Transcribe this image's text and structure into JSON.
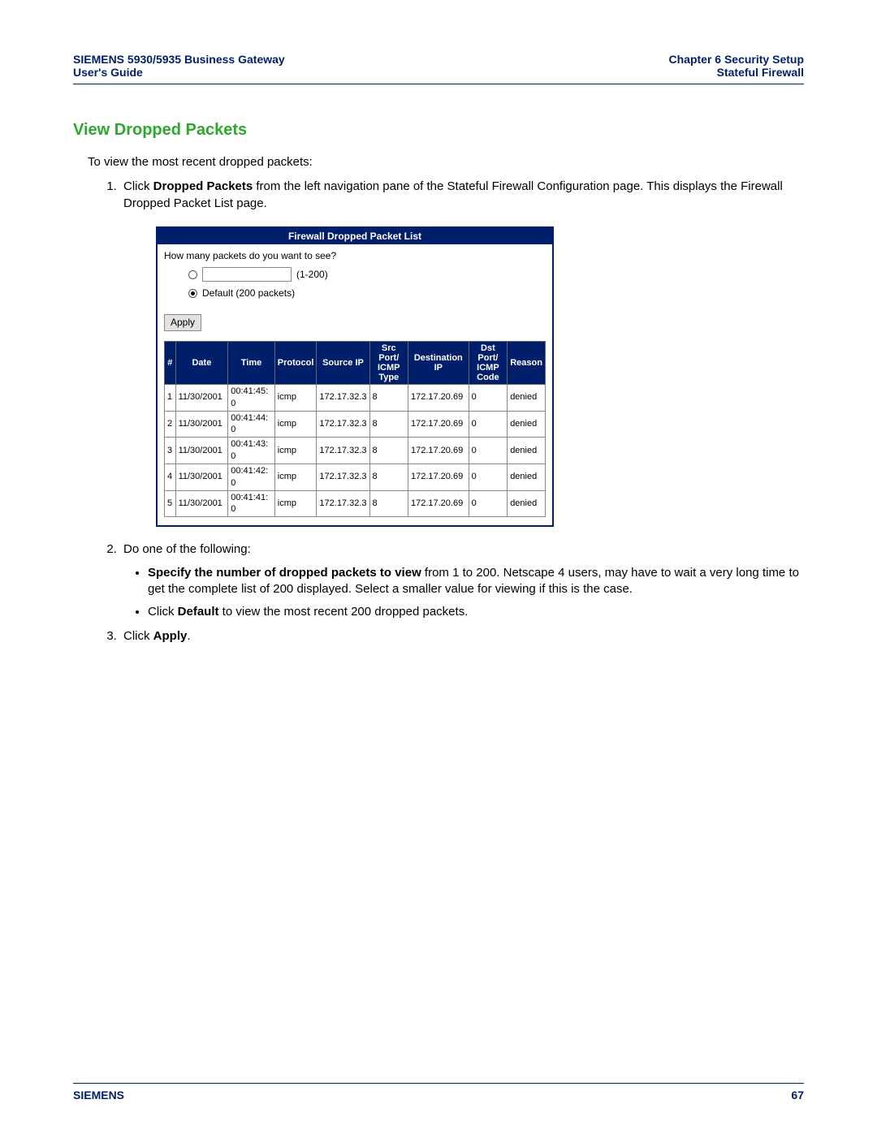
{
  "header": {
    "left_line1": "SIEMENS 5930/5935 Business Gateway",
    "left_line2": "User's Guide",
    "right_line1": "Chapter 6  Security Setup",
    "right_line2": "Stateful Firewall"
  },
  "section_title": "View Dropped Packets",
  "intro": "To view the most recent dropped packets:",
  "step1_a": "Click ",
  "step1_bold": "Dropped Packets",
  "step1_b": " from the left navigation pane of the Stateful Firewall Configuration page. This displays the Firewall Dropped Packet List page.",
  "ui": {
    "title": "Firewall Dropped Packet List",
    "question": "How many packets do you want to see?",
    "range_hint": "(1-200)",
    "default_label": "Default (200 packets)",
    "apply": "Apply",
    "columns": [
      "#",
      "Date",
      "Time",
      "Protocol",
      "Source IP",
      "Src Port/\nICMP Type",
      "Destination IP",
      "Dst Port/\nICMP Code",
      "Reason"
    ],
    "rows": [
      [
        "1",
        "11/30/2001",
        "00:41:45: 0",
        "icmp",
        "172.17.32.3",
        "8",
        "172.17.20.69",
        "0",
        "denied"
      ],
      [
        "2",
        "11/30/2001",
        "00:41:44: 0",
        "icmp",
        "172.17.32.3",
        "8",
        "172.17.20.69",
        "0",
        "denied"
      ],
      [
        "3",
        "11/30/2001",
        "00:41:43: 0",
        "icmp",
        "172.17.32.3",
        "8",
        "172.17.20.69",
        "0",
        "denied"
      ],
      [
        "4",
        "11/30/2001",
        "00:41:42: 0",
        "icmp",
        "172.17.32.3",
        "8",
        "172.17.20.69",
        "0",
        "denied"
      ],
      [
        "5",
        "11/30/2001",
        "00:41:41: 0",
        "icmp",
        "172.17.32.3",
        "8",
        "172.17.20.69",
        "0",
        "denied"
      ]
    ],
    "col_widths": [
      "14px",
      "68px",
      "62px",
      "46px",
      "62px",
      "60px",
      "78px",
      "60px",
      "44px"
    ],
    "header_bg": "#001f6b",
    "header_fg": "#ffffff"
  },
  "step2_intro": "Do one of the following:",
  "step2_bullet1_bold": "Specify the number of dropped packets to view",
  "step2_bullet1_rest": " from 1 to 200. Netscape 4 users, may have to wait a very long time to get the complete list of 200 displayed. Select a smaller value for viewing if this is the case.",
  "step2_bullet2_a": "Click ",
  "step2_bullet2_bold": "Default",
  "step2_bullet2_b": " to view the most recent 200 dropped packets.",
  "step3_a": "Click ",
  "step3_bold": "Apply",
  "step3_b": ".",
  "footer": {
    "brand": "SIEMENS",
    "page_num": "67"
  },
  "colors": {
    "heading_green": "#2da82d",
    "brand_navy": "#001f6b",
    "rule": "#001f6b"
  }
}
